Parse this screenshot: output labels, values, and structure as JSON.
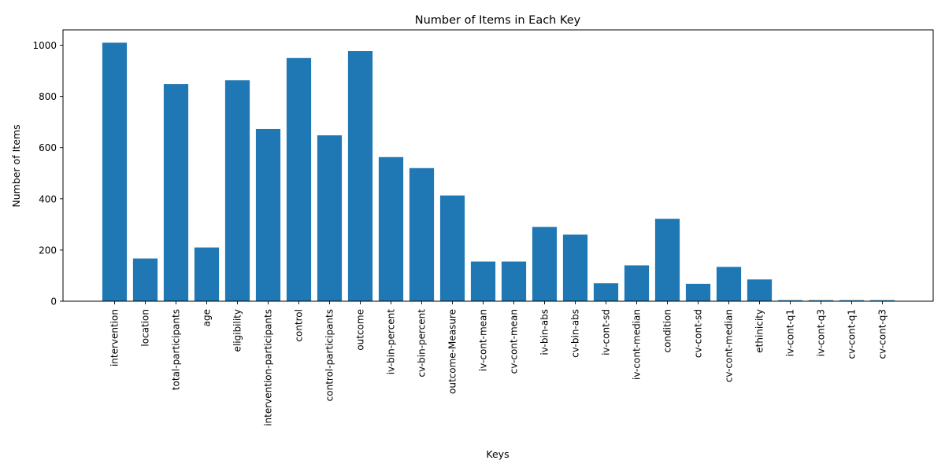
{
  "chart_data": {
    "type": "bar",
    "title": "Number of Items in Each Key",
    "xlabel": "Keys",
    "ylabel": "Number of Items",
    "ylim": [
      0,
      1060
    ],
    "yticks": [
      0,
      200,
      400,
      600,
      800,
      1000
    ],
    "grid": false,
    "bar_color": "#1f77b4",
    "categories": [
      "intervention",
      "location",
      "total-participants",
      "age",
      "eligibility",
      "intervention-participants",
      "control",
      "control-participants",
      "outcome",
      "iv-bin-percent",
      "cv-bin-percent",
      "outcome-Measure",
      "iv-cont-mean",
      "cv-cont-mean",
      "iv-bin-abs",
      "cv-bin-abs",
      "iv-cont-sd",
      "iv-cont-median",
      "condition",
      "cv-cont-sd",
      "cv-cont-median",
      "ethinicity",
      "iv-cont-q1",
      "iv-cont-q3",
      "cv-cont-q1",
      "cv-cont-q3"
    ],
    "values": [
      1010,
      167,
      848,
      210,
      863,
      673,
      950,
      648,
      977,
      563,
      520,
      413,
      155,
      155,
      290,
      260,
      70,
      140,
      322,
      68,
      134,
      85,
      4,
      4,
      4,
      4
    ]
  }
}
